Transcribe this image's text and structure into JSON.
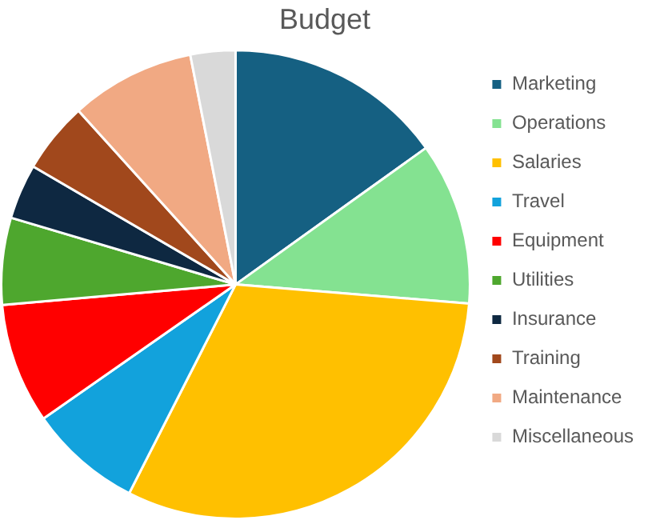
{
  "chart_data": {
    "type": "pie",
    "title": "Budget",
    "categories": [
      "Marketing",
      "Operations",
      "Salaries",
      "Travel",
      "Equipment",
      "Utilities",
      "Insurance",
      "Training",
      "Maintenance",
      "Miscellaneous"
    ],
    "values": [
      15.1,
      11.2,
      31.2,
      7.8,
      8.3,
      6,
      3.8,
      4.9,
      8.6,
      3.1
    ],
    "colors": [
      "#156082",
      "#84e291",
      "#ffc000",
      "#12a2dc",
      "#ff0000",
      "#4ea72e",
      "#0e2841",
      "#a1481c",
      "#f1a983",
      "#d9d9d9"
    ],
    "legend": "right"
  }
}
